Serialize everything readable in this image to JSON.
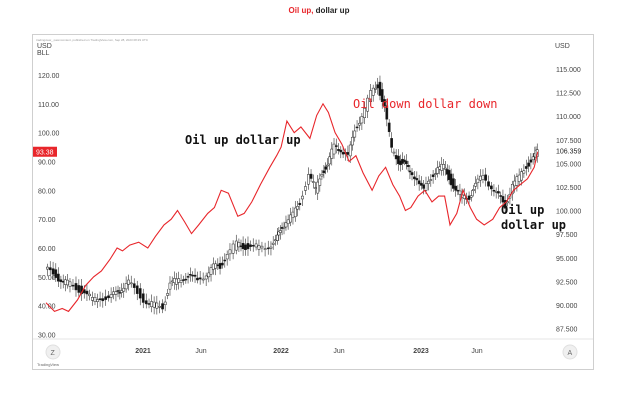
{
  "heading": {
    "part1": "Oil up,",
    "part2": "dollar up"
  },
  "watermark": "tradingview_ pasmcontent, published on TradingView.com, Sep 28, 2023 08:29 UTC",
  "left_axis": {
    "unit_top": "USD",
    "unit_bottom": "BLL",
    "ticks": [
      "120.00",
      "110.00",
      "100.00",
      "90.00",
      "80.00",
      "70.00",
      "60.00",
      "50.00",
      "40.00",
      "30.00"
    ],
    "current": "93.38"
  },
  "right_axis": {
    "unit": "USD",
    "ticks": [
      "115.000",
      "112.500",
      "110.000",
      "107.500",
      "105.000",
      "102.500",
      "100.000",
      "97.500",
      "95.000",
      "92.500",
      "90.000",
      "87.500"
    ],
    "current": "106.359"
  },
  "x_axis": {
    "ticks": [
      "2021",
      "Jun",
      "2022",
      "Jun",
      "2023",
      "Jun"
    ]
  },
  "annotations": {
    "a1": "Oil up dollar up",
    "a2": "Oil down dollar down",
    "a3_line1": "Oil up",
    "a3_line2": "dollar up"
  },
  "buttons": {
    "left": "Z",
    "right": "A"
  },
  "footer": "TradingView",
  "colors": {
    "oil": "#e8262b",
    "up_candle": "#ffffff",
    "down_candle": "#111111",
    "text": "#222222"
  },
  "chart_data": {
    "type": "line",
    "series": [
      {
        "axis": "left",
        "color": "#e8262b",
        "x": [
          "2020-10-01",
          "2020-10-20",
          "2020-11-06",
          "2020-11-20",
          "2020-12-10",
          "2020-12-28",
          "2021-01-15",
          "2021-02-01",
          "2021-02-20",
          "2021-03-08",
          "2021-03-20",
          "2021-04-05",
          "2021-04-25",
          "2021-05-15",
          "2021-06-01",
          "2021-06-20",
          "2021-07-06",
          "2021-07-20",
          "2021-08-05",
          "2021-08-20",
          "2021-09-05",
          "2021-09-25",
          "2021-10-10",
          "2021-10-25",
          "2021-11-10",
          "2021-12-01",
          "2021-12-15",
          "2022-01-01",
          "2022-01-20",
          "2022-02-10",
          "2022-02-25",
          "2022-03-07",
          "2022-03-20",
          "2022-04-05",
          "2022-04-20",
          "2022-05-10",
          "2022-05-25",
          "2022-06-08",
          "2022-06-20",
          "2022-07-05",
          "2022-07-20",
          "2022-08-05",
          "2022-08-20",
          "2022-09-05",
          "2022-09-25",
          "2022-10-10",
          "2022-10-25",
          "2022-11-10",
          "2022-11-25",
          "2022-12-08",
          "2022-12-20",
          "2023-01-05",
          "2023-01-20",
          "2023-02-05",
          "2023-02-20",
          "2023-03-05",
          "2023-03-17",
          "2023-04-01",
          "2023-04-15",
          "2023-05-01",
          "2023-05-15",
          "2023-06-01",
          "2023-06-20",
          "2023-07-05",
          "2023-07-20",
          "2023-08-05",
          "2023-08-20",
          "2023-09-05",
          "2023-09-20",
          "2023-09-28"
        ],
        "values": [
          41,
          38,
          39,
          38,
          42,
          47,
          50,
          52,
          56,
          60,
          59,
          61,
          62,
          60,
          64,
          68,
          70,
          73,
          69,
          65,
          68,
          72,
          74,
          80,
          79,
          71,
          72,
          76,
          82,
          88,
          92,
          95,
          104,
          100,
          102,
          98,
          106,
          110,
          107,
          100,
          96,
          90,
          92,
          86,
          80,
          85,
          88,
          82,
          78,
          73,
          74,
          78,
          80,
          76,
          78,
          78,
          68,
          72,
          80,
          74,
          70,
          68,
          70,
          74,
          76,
          80,
          82,
          84,
          88,
          93.38
        ]
      },
      {
        "axis": "right",
        "type": "ohlc-approx",
        "x": [
          "2020-10-01",
          "2020-10-20",
          "2020-11-06",
          "2020-11-20",
          "2020-12-10",
          "2020-12-28",
          "2021-01-15",
          "2021-02-01",
          "2021-02-20",
          "2021-03-08",
          "2021-03-20",
          "2021-04-05",
          "2021-04-25",
          "2021-05-15",
          "2021-06-01",
          "2021-06-20",
          "2021-07-06",
          "2021-07-20",
          "2021-08-05",
          "2021-08-20",
          "2021-09-05",
          "2021-09-25",
          "2021-10-10",
          "2021-10-25",
          "2021-11-10",
          "2021-12-01",
          "2021-12-15",
          "2022-01-01",
          "2022-01-20",
          "2022-02-10",
          "2022-02-25",
          "2022-03-07",
          "2022-03-20",
          "2022-04-05",
          "2022-04-20",
          "2022-05-10",
          "2022-05-25",
          "2022-06-08",
          "2022-06-20",
          "2022-07-05",
          "2022-07-20",
          "2022-08-05",
          "2022-08-20",
          "2022-09-05",
          "2022-09-25",
          "2022-10-10",
          "2022-10-25",
          "2022-11-10",
          "2022-11-25",
          "2022-12-08",
          "2022-12-20",
          "2023-01-05",
          "2023-01-20",
          "2023-02-05",
          "2023-02-20",
          "2023-03-05",
          "2023-03-17",
          "2023-04-01",
          "2023-04-15",
          "2023-05-01",
          "2023-05-15",
          "2023-06-01",
          "2023-06-20",
          "2023-07-05",
          "2023-07-20",
          "2023-08-05",
          "2023-08-20",
          "2023-09-05",
          "2023-09-20",
          "2023-09-28"
        ],
        "values": [
          93.8,
          93.4,
          92.6,
          92.3,
          91.9,
          91.2,
          90.6,
          90.9,
          90.5,
          91.4,
          91.8,
          92.3,
          91.4,
          90.2,
          90.0,
          89.9,
          92.2,
          92.6,
          93.0,
          92.9,
          92.7,
          93.3,
          94.0,
          94.1,
          95.4,
          96.5,
          96.3,
          96.0,
          96.2,
          96.3,
          96.6,
          98.0,
          98.9,
          99.5,
          100.9,
          103.8,
          102.2,
          104.2,
          104.6,
          107.0,
          106.5,
          105.6,
          108.6,
          110.1,
          112.4,
          113.3,
          111.0,
          106.5,
          105.3,
          104.9,
          104.1,
          103.5,
          102.0,
          103.5,
          104.6,
          104.6,
          103.6,
          102.0,
          101.6,
          101.5,
          102.6,
          103.8,
          102.5,
          101.5,
          100.5,
          102.8,
          103.5,
          104.8,
          105.5,
          106.359
        ]
      }
    ],
    "left_ylim": [
      30,
      125
    ],
    "right_ylim": [
      87.5,
      116
    ],
    "grid": false
  }
}
